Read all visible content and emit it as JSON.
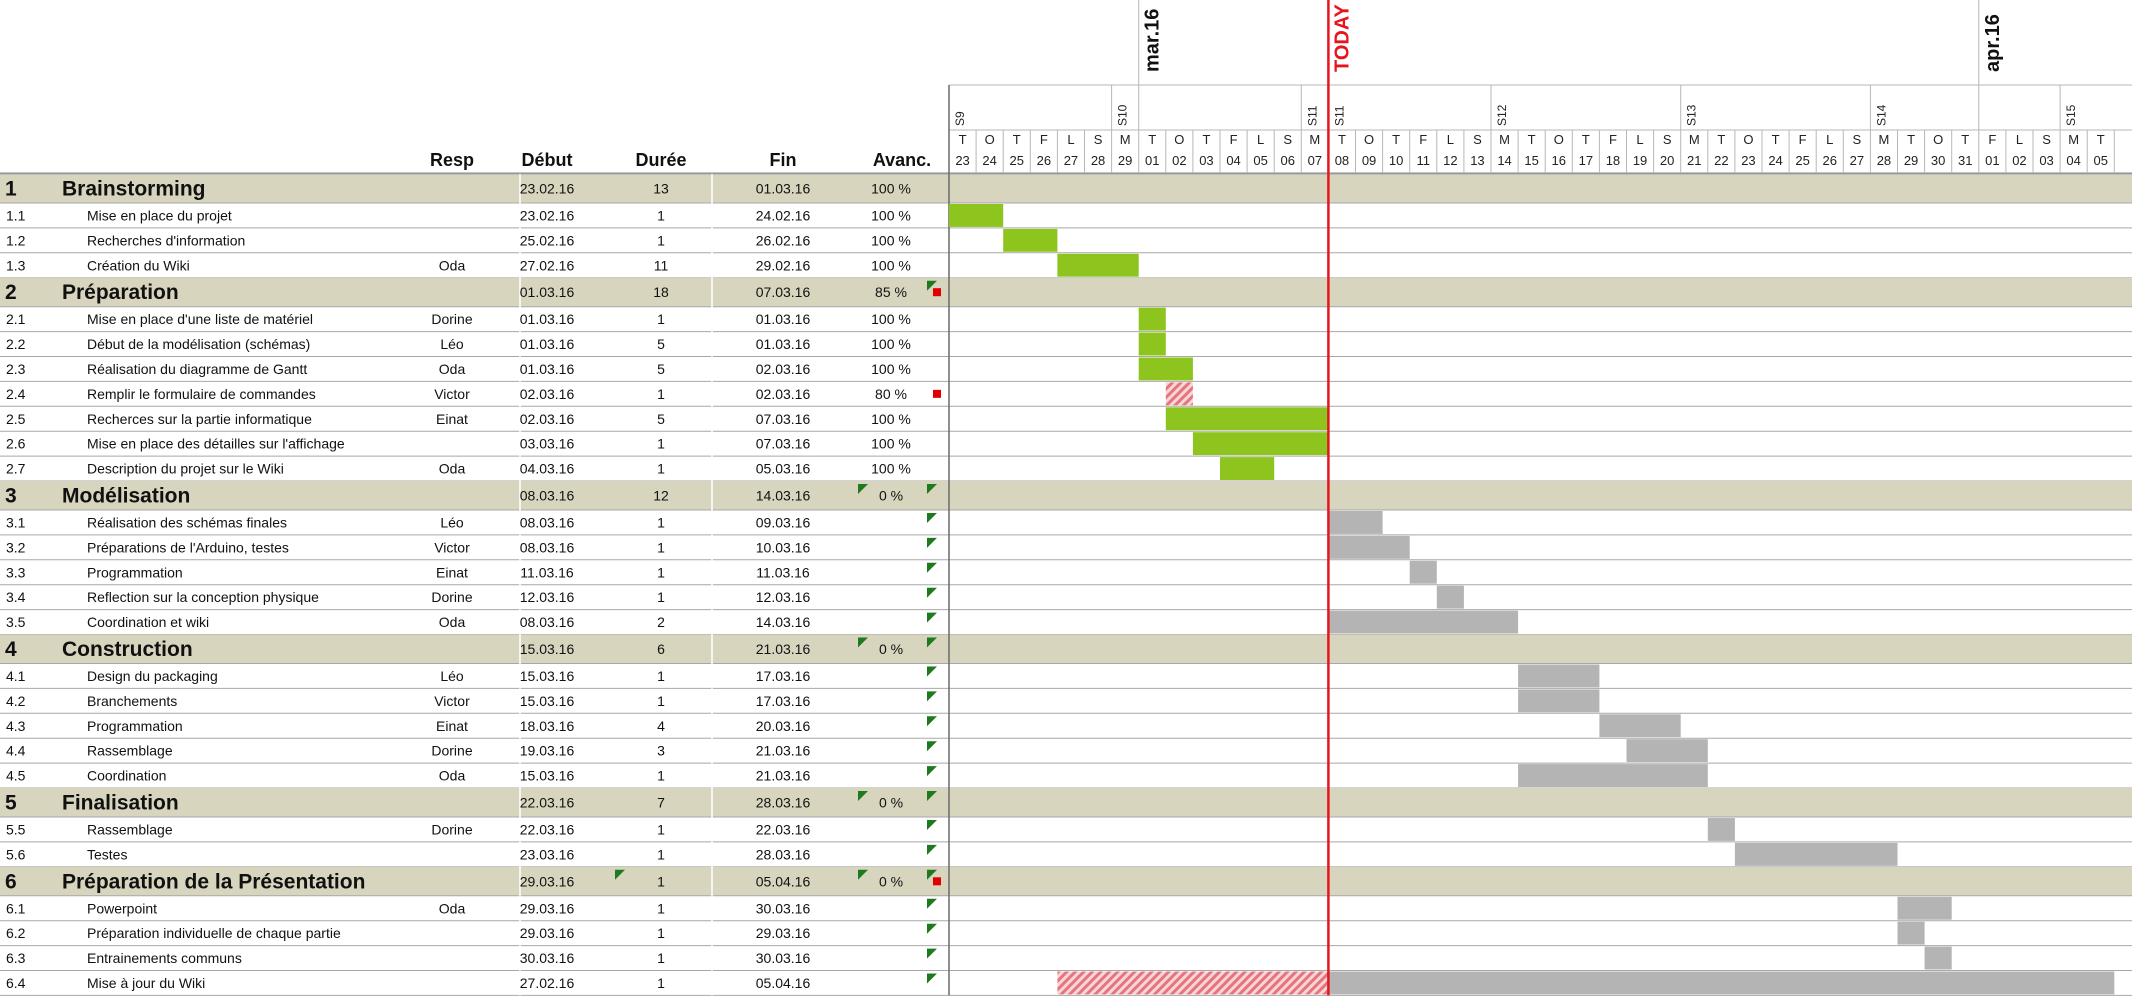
{
  "chart_data": {
    "type": "gantt",
    "today_label": "TODAY",
    "columns": {
      "resp": "Resp",
      "debut": "Début",
      "duree": "Durée",
      "fin": "Fin",
      "avanc": "Avanc."
    },
    "months": [
      {
        "label": "mar.16",
        "at": "01.03.16"
      },
      {
        "label": "apr.16",
        "at": "01.04.16"
      }
    ],
    "weeks": [
      {
        "label": "S9",
        "at": "23.02.16"
      },
      {
        "label": "S10",
        "at": "29.02.16"
      },
      {
        "label": "S11",
        "at": "06.03.16"
      },
      {
        "label": "S11",
        "at": "08.03.16"
      },
      {
        "label": "S12",
        "at": "14.03.16"
      },
      {
        "label": "S13",
        "at": "21.03.16"
      },
      {
        "label": "S14",
        "at": "28.03.16"
      },
      {
        "label": "S15",
        "at": "04.04.16"
      }
    ],
    "day_letters": [
      "T",
      "O",
      "T",
      "F",
      "L",
      "S",
      "M",
      "T",
      "O",
      "T",
      "F",
      "L",
      "S",
      "M",
      "T",
      "O",
      "T",
      "F",
      "L",
      "S",
      "M",
      "T",
      "O",
      "T",
      "F",
      "L",
      "S",
      "M",
      "T",
      "O",
      "T",
      "F",
      "L",
      "S",
      "M",
      "T",
      "O",
      "T",
      "F",
      "L",
      "S",
      "M",
      "T"
    ],
    "day_numbers": [
      "23",
      "24",
      "25",
      "26",
      "27",
      "28",
      "29",
      "01",
      "02",
      "03",
      "04",
      "05",
      "06",
      "07",
      "08",
      "09",
      "10",
      "11",
      "12",
      "13",
      "14",
      "15",
      "16",
      "17",
      "18",
      "19",
      "20",
      "21",
      "22",
      "23",
      "24",
      "25",
      "26",
      "27",
      "28",
      "29",
      "30",
      "31",
      "01",
      "02",
      "03",
      "04",
      "05"
    ],
    "today_index": 14,
    "rows": [
      {
        "id": "1",
        "name": "Brainstorming",
        "resp": "",
        "debut": "23.02.16",
        "duree": "13",
        "fin": "01.03.16",
        "avanc": "100 %",
        "group": true
      },
      {
        "id": "1.1",
        "name": "Mise en place du projet",
        "resp": "",
        "debut": "23.02.16",
        "duree": "1",
        "fin": "24.02.16",
        "avanc": "100 %",
        "bar": [
          0,
          2
        ],
        "kind": "done"
      },
      {
        "id": "1.2",
        "name": "Recherches d'information",
        "resp": "",
        "debut": "25.02.16",
        "duree": "1",
        "fin": "26.02.16",
        "avanc": "100 %",
        "bar": [
          2,
          4
        ],
        "kind": "done"
      },
      {
        "id": "1.3",
        "name": "Création du Wiki",
        "resp": "Oda",
        "debut": "27.02.16",
        "duree": "11",
        "fin": "29.02.16",
        "avanc": "100 %",
        "bar": [
          4,
          7
        ],
        "kind": "done"
      },
      {
        "id": "2",
        "name": "Préparation",
        "resp": "",
        "debut": "01.03.16",
        "duree": "18",
        "fin": "07.03.16",
        "avanc": "85 %",
        "group": true,
        "flag": true,
        "red": true
      },
      {
        "id": "2.1",
        "name": "Mise en place d'une liste de matériel",
        "resp": "Dorine",
        "debut": "01.03.16",
        "duree": "1",
        "fin": "01.03.16",
        "avanc": "100 %",
        "bar": [
          7,
          8
        ],
        "kind": "done"
      },
      {
        "id": "2.2",
        "name": "Début de la modélisation (schémas)",
        "resp": "Léo",
        "debut": "01.03.16",
        "duree": "5",
        "fin": "01.03.16",
        "avanc": "100 %",
        "bar": [
          7,
          8
        ],
        "kind": "done"
      },
      {
        "id": "2.3",
        "name": "Réalisation du diagramme de Gantt",
        "resp": "Oda",
        "debut": "01.03.16",
        "duree": "5",
        "fin": "02.03.16",
        "avanc": "100 %",
        "bar": [
          7,
          9
        ],
        "kind": "done"
      },
      {
        "id": "2.4",
        "name": "Remplir le formulaire de commandes",
        "resp": "Victor",
        "debut": "02.03.16",
        "duree": "1",
        "fin": "02.03.16",
        "avanc": "80 %",
        "bar": [
          8,
          9
        ],
        "kind": "late",
        "red": true
      },
      {
        "id": "2.5",
        "name": "Recherces sur la partie informatique",
        "resp": "Einat",
        "debut": "02.03.16",
        "duree": "5",
        "fin": "07.03.16",
        "avanc": "100 %",
        "bar": [
          8,
          14
        ],
        "kind": "done"
      },
      {
        "id": "2.6",
        "name": "Mise en place des détailles sur l'affichage",
        "resp": "",
        "debut": "03.03.16",
        "duree": "1",
        "fin": "07.03.16",
        "avanc": "100 %",
        "bar": [
          9,
          14
        ],
        "kind": "done"
      },
      {
        "id": "2.7",
        "name": "Description du projet sur le Wiki",
        "resp": "Oda",
        "debut": "04.03.16",
        "duree": "1",
        "fin": "05.03.16",
        "avanc": "100 %",
        "bar": [
          10,
          12
        ],
        "kind": "done"
      },
      {
        "id": "3",
        "name": "Modélisation",
        "resp": "",
        "debut": "08.03.16",
        "duree": "12",
        "fin": "14.03.16",
        "avanc": "0 %",
        "group": true,
        "flag": true,
        "avflag": true
      },
      {
        "id": "3.1",
        "name": "Réalisation des schémas finales",
        "resp": "Léo",
        "debut": "08.03.16",
        "duree": "1",
        "fin": "09.03.16",
        "avanc": "",
        "bar": [
          14,
          16
        ],
        "kind": "todo",
        "flag": true
      },
      {
        "id": "3.2",
        "name": "Préparations de l'Arduino, testes",
        "resp": "Victor",
        "debut": "08.03.16",
        "duree": "1",
        "fin": "10.03.16",
        "avanc": "",
        "bar": [
          14,
          17
        ],
        "kind": "todo",
        "flag": true
      },
      {
        "id": "3.3",
        "name": "Programmation",
        "resp": "Einat",
        "debut": "11.03.16",
        "duree": "1",
        "fin": "11.03.16",
        "avanc": "",
        "bar": [
          17,
          18
        ],
        "kind": "todo",
        "flag": true
      },
      {
        "id": "3.4",
        "name": "Reflection sur la conception physique",
        "resp": "Dorine",
        "debut": "12.03.16",
        "duree": "1",
        "fin": "12.03.16",
        "avanc": "",
        "bar": [
          18,
          19
        ],
        "kind": "todo",
        "flag": true
      },
      {
        "id": "3.5",
        "name": "Coordination et wiki",
        "resp": "Oda",
        "debut": "08.03.16",
        "duree": "2",
        "fin": "14.03.16",
        "avanc": "",
        "bar": [
          14,
          21
        ],
        "kind": "todo",
        "flag": true
      },
      {
        "id": "4",
        "name": "Construction",
        "resp": "",
        "debut": "15.03.16",
        "duree": "6",
        "fin": "21.03.16",
        "avanc": "0 %",
        "group": true,
        "flag": true,
        "avflag": true
      },
      {
        "id": "4.1",
        "name": "Design du packaging",
        "resp": "Léo",
        "debut": "15.03.16",
        "duree": "1",
        "fin": "17.03.16",
        "avanc": "",
        "bar": [
          21,
          24
        ],
        "kind": "todo",
        "flag": true
      },
      {
        "id": "4.2",
        "name": "Branchements",
        "resp": "Victor",
        "debut": "15.03.16",
        "duree": "1",
        "fin": "17.03.16",
        "avanc": "",
        "bar": [
          21,
          24
        ],
        "kind": "todo",
        "flag": true
      },
      {
        "id": "4.3",
        "name": "Programmation",
        "resp": "Einat",
        "debut": "18.03.16",
        "duree": "4",
        "fin": "20.03.16",
        "avanc": "",
        "bar": [
          24,
          27
        ],
        "kind": "todo",
        "flag": true
      },
      {
        "id": "4.4",
        "name": "Rassemblage",
        "resp": "Dorine",
        "debut": "19.03.16",
        "duree": "3",
        "fin": "21.03.16",
        "avanc": "",
        "bar": [
          25,
          28
        ],
        "kind": "todo",
        "flag": true
      },
      {
        "id": "4.5",
        "name": "Coordination",
        "resp": "Oda",
        "debut": "15.03.16",
        "duree": "1",
        "fin": "21.03.16",
        "avanc": "",
        "bar": [
          21,
          28
        ],
        "kind": "todo",
        "flag": true
      },
      {
        "id": "5",
        "name": "Finalisation",
        "resp": "",
        "debut": "22.03.16",
        "duree": "7",
        "fin": "28.03.16",
        "avanc": "0 %",
        "group": true,
        "flag": true,
        "avflag": true
      },
      {
        "id": "5.5",
        "name": "Rassemblage",
        "resp": "Dorine",
        "debut": "22.03.16",
        "duree": "1",
        "fin": "22.03.16",
        "avanc": "",
        "bar": [
          28,
          29
        ],
        "kind": "todo",
        "flag": true
      },
      {
        "id": "5.6",
        "name": "Testes",
        "resp": "",
        "debut": "23.03.16",
        "duree": "1",
        "fin": "28.03.16",
        "avanc": "",
        "bar": [
          29,
          35
        ],
        "kind": "todo",
        "flag": true
      },
      {
        "id": "6",
        "name": "Préparation de la Présentation",
        "resp": "",
        "debut": "29.03.16",
        "duree": "1",
        "fin": "05.04.16",
        "avanc": "0 %",
        "group": true,
        "flag": true,
        "avflag": true,
        "debflag": true,
        "red": true
      },
      {
        "id": "6.1",
        "name": "Powerpoint",
        "resp": "Oda",
        "debut": "29.03.16",
        "duree": "1",
        "fin": "30.03.16",
        "avanc": "",
        "bar": [
          35,
          37
        ],
        "kind": "todo",
        "flag": true
      },
      {
        "id": "6.2",
        "name": "Préparation individuelle de chaque partie",
        "resp": "",
        "debut": "29.03.16",
        "duree": "1",
        "fin": "29.03.16",
        "avanc": "",
        "bar": [
          35,
          36
        ],
        "kind": "todo",
        "flag": true
      },
      {
        "id": "6.3",
        "name": "Entrainements communs",
        "resp": "",
        "debut": "30.03.16",
        "duree": "1",
        "fin": "30.03.16",
        "avanc": "",
        "bar": [
          36,
          37
        ],
        "kind": "todo",
        "flag": true
      },
      {
        "id": "6.4",
        "name": "Mise à jour du Wiki",
        "resp": "",
        "debut": "27.02.16",
        "duree": "1",
        "fin": "05.04.16",
        "avanc": "",
        "bar": [
          4,
          43
        ],
        "kind": "split",
        "flag": true
      }
    ],
    "colors": {
      "group_bg": "#d8d5bf",
      "done": "#8dc41d",
      "todo": "#b4b4b4",
      "late": "#e8737c",
      "today": "#e8141c",
      "flag": "#1f7a1f",
      "red_marker": "#e00000",
      "grid": "#b7b7b7"
    }
  }
}
